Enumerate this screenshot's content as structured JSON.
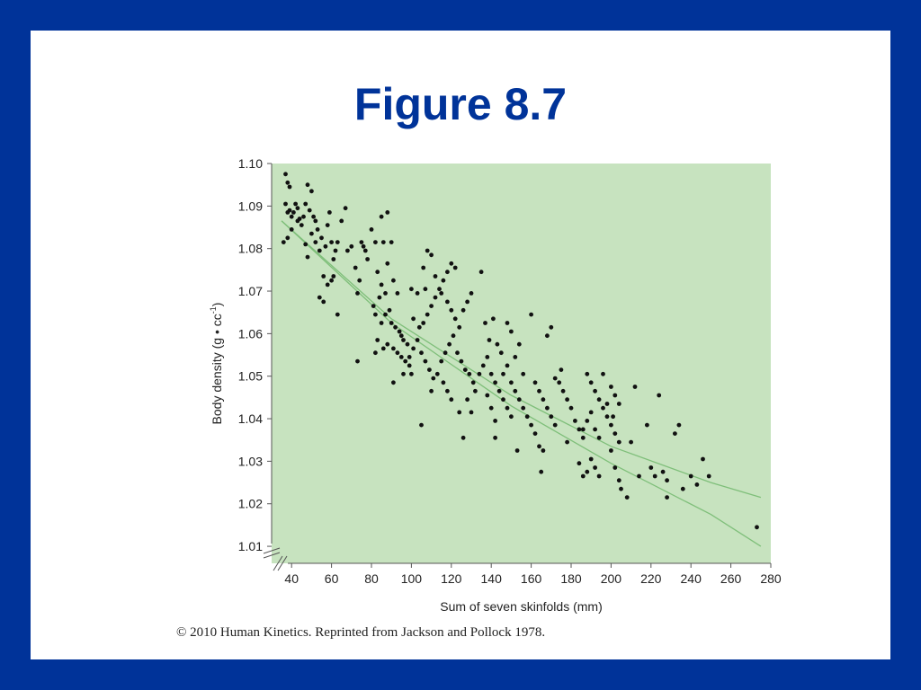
{
  "slide": {
    "title": "Figure 8.7",
    "credit": "© 2010 Human Kinetics. Reprinted from Jackson and Pollock 1978."
  },
  "colors": {
    "frame": "#003399",
    "title": "#003399",
    "plot_background": "#c7e3bf",
    "points": "#111111",
    "fit_lines": "#7fbf7a"
  },
  "chart_data": {
    "type": "scatter",
    "xlabel": "Sum of seven skinfolds (mm)",
    "ylabel_main": "Body density (g • cc",
    "ylabel_sup": "-1",
    "ylabel_end": ")",
    "xlim": [
      30,
      280
    ],
    "ylim": [
      1.006,
      1.1
    ],
    "x_ticks": [
      40,
      60,
      80,
      100,
      120,
      140,
      160,
      180,
      200,
      220,
      240,
      260,
      280
    ],
    "x_tick_labels": [
      "40",
      "60",
      "80",
      "100",
      "120",
      "140",
      "160",
      "180",
      "200",
      "220",
      "240",
      "260",
      "280"
    ],
    "y_ticks": [
      1.01,
      1.02,
      1.03,
      1.04,
      1.05,
      1.06,
      1.07,
      1.08,
      1.09,
      1.1
    ],
    "y_tick_labels": [
      "1.01",
      "1.02",
      "1.03",
      "1.04",
      "1.05",
      "1.06",
      "1.07",
      "1.08",
      "1.09",
      "1.10"
    ],
    "axis_break": "both",
    "grid": false,
    "lines": [
      {
        "x": [
          35,
          90,
          150,
          200,
          250,
          275
        ],
        "y": [
          1.0865,
          1.0635,
          1.0455,
          1.0335,
          1.025,
          1.0215
        ]
      },
      {
        "x": [
          35,
          90,
          150,
          200,
          250,
          275
        ],
        "y": [
          1.0865,
          1.0625,
          1.043,
          1.0295,
          1.0175,
          1.01
        ]
      }
    ],
    "points": [
      [
        37,
        1.0975
      ],
      [
        38,
        1.0955
      ],
      [
        39,
        1.0945
      ],
      [
        37,
        1.0905
      ],
      [
        38,
        1.0885
      ],
      [
        39,
        1.089
      ],
      [
        40,
        1.0875
      ],
      [
        41,
        1.0885
      ],
      [
        42,
        1.0905
      ],
      [
        43,
        1.0895
      ],
      [
        44,
        1.087
      ],
      [
        45,
        1.0855
      ],
      [
        46,
        1.0875
      ],
      [
        47,
        1.0905
      ],
      [
        48,
        1.095
      ],
      [
        50,
        1.0935
      ],
      [
        49,
        1.089
      ],
      [
        51,
        1.0875
      ],
      [
        52,
        1.0865
      ],
      [
        53,
        1.0845
      ],
      [
        36,
        1.0815
      ],
      [
        38,
        1.0825
      ],
      [
        40,
        1.0845
      ],
      [
        43,
        1.0865
      ],
      [
        47,
        1.081
      ],
      [
        48,
        1.078
      ],
      [
        50,
        1.0835
      ],
      [
        52,
        1.0815
      ],
      [
        54,
        1.0795
      ],
      [
        55,
        1.0825
      ],
      [
        57,
        1.0805
      ],
      [
        58,
        1.0855
      ],
      [
        59,
        1.0885
      ],
      [
        60,
        1.0815
      ],
      [
        61,
        1.0775
      ],
      [
        62,
        1.0795
      ],
      [
        63,
        1.0815
      ],
      [
        56,
        1.0735
      ],
      [
        58,
        1.0715
      ],
      [
        60,
        1.0725
      ],
      [
        61,
        1.0735
      ],
      [
        54,
        1.0685
      ],
      [
        56,
        1.0675
      ],
      [
        65,
        1.0865
      ],
      [
        67,
        1.0895
      ],
      [
        68,
        1.0795
      ],
      [
        70,
        1.0805
      ],
      [
        72,
        1.0755
      ],
      [
        74,
        1.0725
      ],
      [
        75,
        1.0815
      ],
      [
        77,
        1.0795
      ],
      [
        78,
        1.0775
      ],
      [
        76,
        1.0805
      ],
      [
        80,
        1.0845
      ],
      [
        82,
        1.0815
      ],
      [
        73,
        1.0695
      ],
      [
        63,
        1.0645
      ],
      [
        85,
        1.0875
      ],
      [
        88,
        1.0885
      ],
      [
        86,
        1.0815
      ],
      [
        90,
        1.0815
      ],
      [
        83,
        1.0745
      ],
      [
        85,
        1.0715
      ],
      [
        88,
        1.0765
      ],
      [
        91,
        1.0725
      ],
      [
        93,
        1.0695
      ],
      [
        87,
        1.0695
      ],
      [
        84,
        1.0685
      ],
      [
        81,
        1.0665
      ],
      [
        82,
        1.0645
      ],
      [
        85,
        1.0625
      ],
      [
        87,
        1.0645
      ],
      [
        89,
        1.0655
      ],
      [
        90,
        1.0625
      ],
      [
        92,
        1.0615
      ],
      [
        94,
        1.0605
      ],
      [
        95,
        1.0595
      ],
      [
        96,
        1.0585
      ],
      [
        98,
        1.0575
      ],
      [
        91,
        1.0565
      ],
      [
        88,
        1.0575
      ],
      [
        86,
        1.0565
      ],
      [
        83,
        1.0585
      ],
      [
        82,
        1.0555
      ],
      [
        93,
        1.0555
      ],
      [
        95,
        1.0545
      ],
      [
        97,
        1.0535
      ],
      [
        99,
        1.0525
      ],
      [
        100,
        1.0505
      ],
      [
        96,
        1.0505
      ],
      [
        73,
        1.0535
      ],
      [
        91,
        1.0485
      ],
      [
        99,
        1.0545
      ],
      [
        101,
        1.0565
      ],
      [
        103,
        1.0585
      ],
      [
        104,
        1.0615
      ],
      [
        106,
        1.0625
      ],
      [
        108,
        1.0645
      ],
      [
        110,
        1.0665
      ],
      [
        112,
        1.0685
      ],
      [
        114,
        1.0705
      ],
      [
        116,
        1.0725
      ],
      [
        118,
        1.0745
      ],
      [
        120,
        1.0765
      ],
      [
        122,
        1.0755
      ],
      [
        108,
        1.0795
      ],
      [
        106,
        1.0755
      ],
      [
        110,
        1.0785
      ],
      [
        112,
        1.0735
      ],
      [
        115,
        1.0695
      ],
      [
        118,
        1.0675
      ],
      [
        120,
        1.0655
      ],
      [
        122,
        1.0635
      ],
      [
        124,
        1.0615
      ],
      [
        126,
        1.0655
      ],
      [
        128,
        1.0675
      ],
      [
        130,
        1.0695
      ],
      [
        107,
        1.0705
      ],
      [
        103,
        1.0695
      ],
      [
        100,
        1.0705
      ],
      [
        101,
        1.0635
      ],
      [
        105,
        1.0555
      ],
      [
        107,
        1.0535
      ],
      [
        109,
        1.0515
      ],
      [
        111,
        1.0495
      ],
      [
        113,
        1.0505
      ],
      [
        115,
        1.0535
      ],
      [
        117,
        1.0555
      ],
      [
        119,
        1.0575
      ],
      [
        121,
        1.0595
      ],
      [
        123,
        1.0555
      ],
      [
        125,
        1.0535
      ],
      [
        127,
        1.0515
      ],
      [
        129,
        1.0505
      ],
      [
        131,
        1.0485
      ],
      [
        116,
        1.0485
      ],
      [
        118,
        1.0465
      ],
      [
        120,
        1.0445
      ],
      [
        110,
        1.0465
      ],
      [
        105,
        1.0385
      ],
      [
        124,
        1.0415
      ],
      [
        126,
        1.0355
      ],
      [
        128,
        1.0445
      ],
      [
        130,
        1.0415
      ],
      [
        132,
        1.0465
      ],
      [
        134,
        1.0505
      ],
      [
        136,
        1.0525
      ],
      [
        138,
        1.0545
      ],
      [
        135,
        1.0745
      ],
      [
        137,
        1.0625
      ],
      [
        139,
        1.0585
      ],
      [
        141,
        1.0635
      ],
      [
        143,
        1.0575
      ],
      [
        145,
        1.0555
      ],
      [
        140,
        1.0505
      ],
      [
        142,
        1.0485
      ],
      [
        144,
        1.0465
      ],
      [
        146,
        1.0445
      ],
      [
        148,
        1.0425
      ],
      [
        150,
        1.0405
      ],
      [
        138,
        1.0455
      ],
      [
        140,
        1.0425
      ],
      [
        142,
        1.0395
      ],
      [
        146,
        1.0505
      ],
      [
        148,
        1.0525
      ],
      [
        150,
        1.0485
      ],
      [
        152,
        1.0465
      ],
      [
        154,
        1.0445
      ],
      [
        156,
        1.0425
      ],
      [
        158,
        1.0405
      ],
      [
        160,
        1.0385
      ],
      [
        152,
        1.0545
      ],
      [
        154,
        1.0575
      ],
      [
        150,
        1.0605
      ],
      [
        148,
        1.0625
      ],
      [
        160,
        1.0645
      ],
      [
        156,
        1.0505
      ],
      [
        162,
        1.0485
      ],
      [
        164,
        1.0465
      ],
      [
        166,
        1.0445
      ],
      [
        168,
        1.0425
      ],
      [
        170,
        1.0405
      ],
      [
        172,
        1.0385
      ],
      [
        162,
        1.0365
      ],
      [
        164,
        1.0335
      ],
      [
        166,
        1.0325
      ],
      [
        165,
        1.0275
      ],
      [
        153,
        1.0325
      ],
      [
        142,
        1.0355
      ],
      [
        170,
        1.0615
      ],
      [
        168,
        1.0595
      ],
      [
        174,
        1.0485
      ],
      [
        176,
        1.0465
      ],
      [
        178,
        1.0445
      ],
      [
        180,
        1.0425
      ],
      [
        182,
        1.0395
      ],
      [
        184,
        1.0375
      ],
      [
        186,
        1.0355
      ],
      [
        175,
        1.0515
      ],
      [
        172,
        1.0495
      ],
      [
        188,
        1.0505
      ],
      [
        190,
        1.0485
      ],
      [
        192,
        1.0465
      ],
      [
        194,
        1.0445
      ],
      [
        196,
        1.0425
      ],
      [
        198,
        1.0405
      ],
      [
        200,
        1.0385
      ],
      [
        202,
        1.0365
      ],
      [
        204,
        1.0345
      ],
      [
        186,
        1.0375
      ],
      [
        188,
        1.0395
      ],
      [
        190,
        1.0415
      ],
      [
        192,
        1.0375
      ],
      [
        194,
        1.0355
      ],
      [
        196,
        1.0505
      ],
      [
        200,
        1.0475
      ],
      [
        202,
        1.0455
      ],
      [
        204,
        1.0435
      ],
      [
        198,
        1.0435
      ],
      [
        201,
        1.0405
      ],
      [
        178,
        1.0345
      ],
      [
        184,
        1.0295
      ],
      [
        186,
        1.0265
      ],
      [
        188,
        1.0275
      ],
      [
        190,
        1.0305
      ],
      [
        192,
        1.0285
      ],
      [
        194,
        1.0265
      ],
      [
        200,
        1.0325
      ],
      [
        202,
        1.0285
      ],
      [
        204,
        1.0255
      ],
      [
        205,
        1.0235
      ],
      [
        208,
        1.0215
      ],
      [
        210,
        1.0345
      ],
      [
        212,
        1.0475
      ],
      [
        214,
        1.0265
      ],
      [
        218,
        1.0385
      ],
      [
        220,
        1.0285
      ],
      [
        222,
        1.0265
      ],
      [
        224,
        1.0455
      ],
      [
        226,
        1.0275
      ],
      [
        228,
        1.0255
      ],
      [
        228,
        1.0215
      ],
      [
        232,
        1.0365
      ],
      [
        234,
        1.0385
      ],
      [
        236,
        1.0235
      ],
      [
        240,
        1.0265
      ],
      [
        243,
        1.0245
      ],
      [
        246,
        1.0305
      ],
      [
        249,
        1.0265
      ],
      [
        273,
        1.0145
      ]
    ]
  }
}
